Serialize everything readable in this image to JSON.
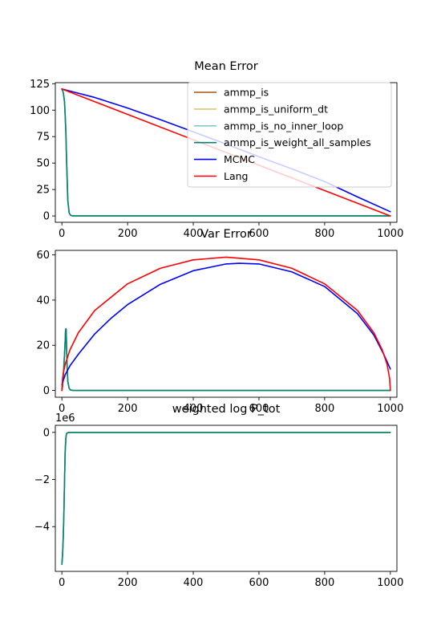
{
  "chart_data": [
    {
      "type": "line",
      "title": "Mean Error",
      "xlim": [
        -20,
        1020
      ],
      "ylim": [
        -6,
        126
      ],
      "xticks": [
        0,
        200,
        400,
        600,
        800,
        1000
      ],
      "yticks": [
        0,
        25,
        50,
        75,
        100,
        125
      ],
      "ytick_labels": [
        "0",
        "25",
        "50",
        "75",
        "100",
        "125"
      ],
      "legend": {
        "loc": "upper right"
      },
      "series": [
        {
          "name": "ammp_is",
          "color": "#a6570e",
          "x": [
            0,
            1,
            3,
            5,
            8,
            10,
            12,
            14,
            18,
            22,
            26,
            30,
            40,
            100,
            500,
            1000
          ],
          "y": [
            120,
            119,
            118,
            115,
            108,
            95,
            80,
            55,
            15,
            3,
            0.8,
            0.2,
            0,
            0,
            0,
            0
          ]
        },
        {
          "name": "ammp_is_uniform_dt",
          "color": "#dfc27d",
          "x": [
            0,
            1,
            3,
            5,
            8,
            10,
            12,
            14,
            18,
            22,
            26,
            30,
            40,
            100,
            500,
            1000
          ],
          "y": [
            120,
            119,
            118,
            115,
            108,
            95,
            80,
            55,
            15,
            3,
            0.8,
            0.2,
            0,
            0,
            0,
            0
          ]
        },
        {
          "name": "ammp_is_no_inner_loop",
          "color": "#80cdc1",
          "x": [
            0,
            1,
            3,
            5,
            8,
            10,
            12,
            14,
            18,
            22,
            26,
            30,
            40,
            100,
            500,
            1000
          ],
          "y": [
            120,
            119,
            118,
            115,
            108,
            95,
            80,
            55,
            15,
            3,
            0.8,
            0.2,
            0,
            0,
            0,
            0
          ]
        },
        {
          "name": "ammp_is_weight_all_samples",
          "color": "#018571",
          "x": [
            0,
            1,
            3,
            5,
            8,
            10,
            12,
            14,
            18,
            22,
            26,
            30,
            40,
            100,
            500,
            1000
          ],
          "y": [
            120,
            119,
            118,
            115,
            108,
            95,
            80,
            55,
            15,
            3,
            0.8,
            0.2,
            0,
            0,
            0,
            0
          ]
        },
        {
          "name": "MCMC",
          "color": "#0000ff",
          "x": [
            0,
            100,
            200,
            300,
            400,
            500,
            600,
            700,
            800,
            900,
            1000
          ],
          "y": [
            120,
            112,
            102,
            91,
            79.5,
            68,
            56,
            44.5,
            32.5,
            18,
            4
          ]
        },
        {
          "name": "Lang",
          "color": "#ff0000",
          "x": [
            0,
            1000
          ],
          "y": [
            120,
            0
          ]
        }
      ]
    },
    {
      "type": "line",
      "title": "Var Error",
      "xlim": [
        -20,
        1020
      ],
      "ylim": [
        -3,
        62
      ],
      "xticks": [
        0,
        200,
        400,
        600,
        800,
        1000
      ],
      "yticks": [
        0,
        20,
        40,
        60
      ],
      "ytick_labels": [
        "0",
        "20",
        "40",
        "60"
      ],
      "series": [
        {
          "name": "ammp_is",
          "color": "#a6570e",
          "x": [
            0,
            2,
            5,
            8,
            10,
            11,
            12,
            13,
            14,
            16,
            18,
            22,
            26,
            35,
            100,
            1000
          ],
          "y": [
            0,
            2,
            8,
            16,
            22,
            26,
            27.3,
            27,
            20,
            10,
            4,
            1,
            0.2,
            0,
            0,
            0
          ]
        },
        {
          "name": "ammp_is_uniform_dt",
          "color": "#dfc27d",
          "x": [
            0,
            2,
            5,
            8,
            10,
            11,
            12,
            13,
            14,
            16,
            18,
            22,
            26,
            35,
            100,
            1000
          ],
          "y": [
            0,
            2,
            8,
            16,
            22,
            26,
            27.3,
            27,
            20,
            10,
            4,
            1,
            0.2,
            0,
            0,
            0
          ]
        },
        {
          "name": "ammp_is_no_inner_loop",
          "color": "#80cdc1",
          "x": [
            0,
            2,
            5,
            8,
            10,
            11,
            12,
            13,
            14,
            16,
            18,
            22,
            26,
            35,
            100,
            1000
          ],
          "y": [
            0,
            2,
            8,
            16,
            22,
            26,
            27.3,
            27,
            20,
            10,
            4,
            1,
            0.2,
            0,
            0,
            0
          ]
        },
        {
          "name": "ammp_is_weight_all_samples",
          "color": "#018571",
          "x": [
            0,
            2,
            5,
            8,
            10,
            11,
            12,
            13,
            14,
            16,
            18,
            22,
            26,
            35,
            100,
            1000
          ],
          "y": [
            0,
            2,
            8,
            16,
            22,
            26,
            27.3,
            27,
            20,
            10,
            4,
            1,
            0.2,
            0,
            0,
            0
          ]
        },
        {
          "name": "MCMC",
          "color": "#0000ff",
          "x": [
            0,
            10,
            25,
            50,
            100,
            150,
            200,
            300,
            400,
            500,
            540,
            600,
            700,
            800,
            900,
            950,
            980,
            1000
          ],
          "y": [
            2.5,
            7,
            11,
            16,
            25,
            32,
            38,
            47,
            53,
            56,
            56.3,
            56,
            52.5,
            46,
            34,
            24.5,
            16,
            9.5
          ]
        },
        {
          "name": "Lang",
          "color": "#ff0000",
          "x": [
            0,
            2,
            5,
            10,
            25,
            50,
            100,
            200,
            300,
            400,
            500,
            600,
            700,
            800,
            900,
            950,
            975,
            990,
            998,
            1000
          ],
          "y": [
            0,
            5.2,
            8.2,
            11.6,
            18.1,
            25.5,
            35.4,
            47.2,
            54.1,
            57.8,
            59,
            57.8,
            54.1,
            47.2,
            35.4,
            25.5,
            18.1,
            11.6,
            5.2,
            0
          ]
        }
      ]
    },
    {
      "type": "line",
      "title": "weighted log P_tot",
      "offset_label": "1e6",
      "xlim": [
        -20,
        1020
      ],
      "ylim": [
        -5.9,
        0.3
      ],
      "xticks": [
        0,
        200,
        400,
        600,
        800,
        1000
      ],
      "yticks": [
        0,
        -2,
        -4
      ],
      "ytick_labels": [
        "0",
        "−2",
        "−4"
      ],
      "series": [
        {
          "name": "ammp_is",
          "color": "#a6570e",
          "x": [
            0,
            2,
            4,
            6,
            8,
            10,
            12,
            14,
            18,
            25,
            100,
            1000
          ],
          "y": [
            -5.6,
            -5.2,
            -4.5,
            -3.5,
            -2.1,
            -0.8,
            -0.25,
            -0.05,
            -0.01,
            0,
            0,
            0
          ]
        },
        {
          "name": "ammp_is_uniform_dt",
          "color": "#dfc27d",
          "x": [
            0,
            2,
            4,
            6,
            8,
            10,
            12,
            14,
            18,
            25,
            100,
            1000
          ],
          "y": [
            -5.6,
            -5.2,
            -4.5,
            -3.5,
            -2.1,
            -0.8,
            -0.25,
            -0.05,
            -0.01,
            0,
            0,
            0
          ]
        },
        {
          "name": "ammp_is_no_inner_loop",
          "color": "#80cdc1",
          "x": [
            0,
            2,
            4,
            6,
            8,
            10,
            12,
            14,
            18,
            25,
            100,
            1000
          ],
          "y": [
            -5.6,
            -5.2,
            -4.5,
            -3.5,
            -2.1,
            -0.8,
            -0.25,
            -0.05,
            -0.01,
            0,
            0,
            0
          ]
        },
        {
          "name": "ammp_is_weight_all_samples",
          "color": "#018571",
          "x": [
            0,
            2,
            4,
            6,
            8,
            10,
            12,
            14,
            18,
            25,
            100,
            1000
          ],
          "y": [
            -5.6,
            -5.2,
            -4.5,
            -3.5,
            -2.1,
            -0.8,
            -0.25,
            -0.05,
            -0.01,
            0,
            0,
            0
          ]
        }
      ]
    }
  ]
}
